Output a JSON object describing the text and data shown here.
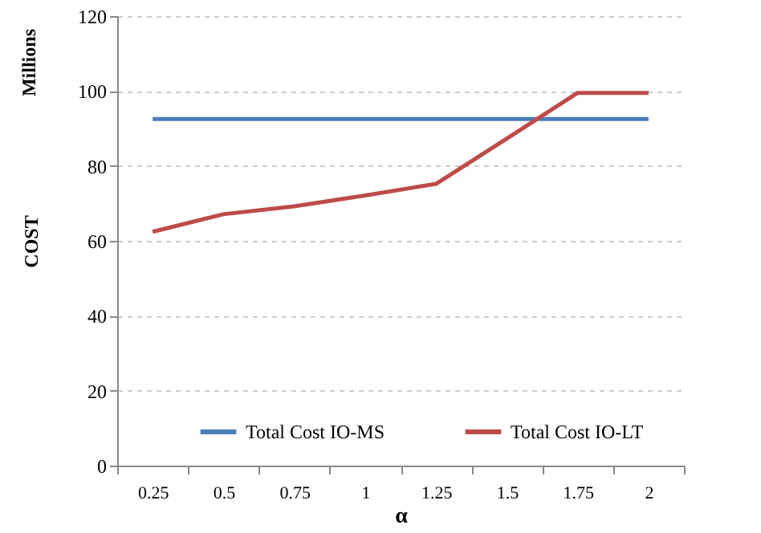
{
  "chart_data": {
    "type": "line",
    "xlabel": "α",
    "ylabel": "COST",
    "annotations": [
      "Millions"
    ],
    "categories": [
      "0.25",
      "0.5",
      "0.75",
      "1",
      "1.25",
      "1.5",
      "1.75",
      "2"
    ],
    "series": [
      {
        "name": "Total Cost  IO-MS",
        "color": "#4a7ebb",
        "values": [
          92.5,
          92.5,
          92.5,
          92.5,
          92.5,
          92.5,
          92.5,
          92.5
        ]
      },
      {
        "name": "Total Cost IO-LT",
        "color": "#be4b48",
        "values": [
          62.4,
          67.1,
          69.2,
          72.1,
          75.2,
          87.3,
          99.5,
          99.5
        ]
      }
    ],
    "ylim": [
      0,
      120
    ],
    "yticks": [
      0,
      20,
      40,
      60,
      80,
      100,
      120
    ],
    "grid": "y",
    "legend": "bottom",
    "marker": "none",
    "line_style": "solid"
  }
}
